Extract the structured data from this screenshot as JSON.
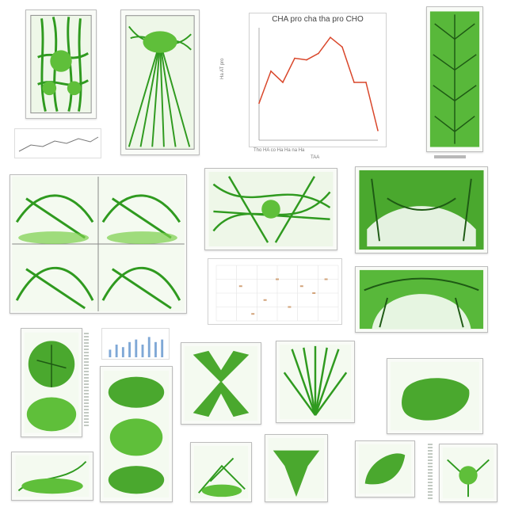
{
  "panels": [
    {
      "id": "plant-roots-1",
      "style": "roots"
    },
    {
      "id": "plant-fan-2",
      "style": "fan"
    },
    {
      "id": "leaf-texture-3",
      "style": "leaf"
    },
    {
      "id": "network-4",
      "style": "network"
    },
    {
      "id": "network-5",
      "style": "network"
    },
    {
      "id": "canopy-6",
      "style": "canopy"
    },
    {
      "id": "canopy-7",
      "style": "canopy"
    },
    {
      "id": "canopy-8",
      "style": "canopy"
    },
    {
      "id": "canopy-9",
      "style": "arch"
    },
    {
      "id": "arch-10",
      "style": "arch"
    },
    {
      "id": "bush-11",
      "style": "bush"
    },
    {
      "id": "bush-12",
      "style": "bush"
    },
    {
      "id": "x-shape-13",
      "style": "xshape"
    },
    {
      "id": "grass-14",
      "style": "grass"
    },
    {
      "id": "blob-15",
      "style": "blob"
    },
    {
      "id": "vine-16",
      "style": "vine"
    },
    {
      "id": "tree-17",
      "style": "tree"
    },
    {
      "id": "vine-18",
      "style": "vine"
    },
    {
      "id": "leaf-19",
      "style": "leaf"
    },
    {
      "id": "tree-20",
      "style": "tree"
    }
  ],
  "line_chart": {
    "title": "CHA pro cha tha pro CHO",
    "x_caption": "Tho HA co Ha Ha na Ha",
    "x_sub": "TAA",
    "y_caption": "Ha AT pro",
    "chart_data": {
      "type": "line",
      "x": [
        1,
        2,
        3,
        4,
        5,
        6,
        7,
        8,
        9,
        10,
        11
      ],
      "values": [
        2.3,
        4.3,
        3.6,
        5.1,
        5.0,
        5.4,
        6.4,
        5.8,
        3.6,
        3.6,
        0.6
      ],
      "ylim": [
        0,
        7
      ],
      "color": "#d9472b"
    }
  },
  "scatter_chart": {
    "chart_data": {
      "type": "scatter",
      "points": [
        {
          "x": 2,
          "y": 5
        },
        {
          "x": 4,
          "y": 3
        },
        {
          "x": 5,
          "y": 6
        },
        {
          "x": 6,
          "y": 2
        },
        {
          "x": 7,
          "y": 5
        },
        {
          "x": 8,
          "y": 4
        },
        {
          "x": 9,
          "y": 6
        },
        {
          "x": 3,
          "y": 1
        }
      ],
      "xlim": [
        0,
        10
      ],
      "ylim": [
        0,
        8
      ],
      "color": "#d2a37a"
    }
  },
  "bar_chart": {
    "chart_data": {
      "type": "bar",
      "values": [
        3,
        5,
        4,
        6,
        7,
        5,
        8,
        6,
        7
      ],
      "ylim": [
        0,
        10
      ],
      "color": "#7fa8d6"
    }
  },
  "colors": {
    "green": "#2f9a1f",
    "light_green": "#7bcf4a",
    "dark": "#1e5a14"
  }
}
